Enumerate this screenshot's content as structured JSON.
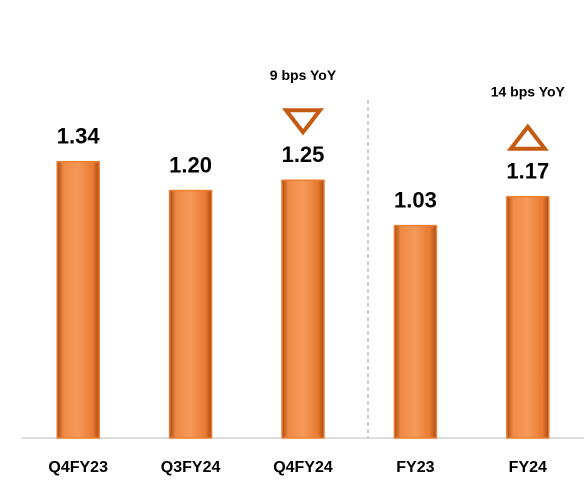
{
  "chart_data": {
    "type": "bar",
    "categories": [
      "Q4FY23",
      "Q3FY24",
      "Q4FY24",
      "FY23",
      "FY24"
    ],
    "values": [
      1.34,
      1.2,
      1.25,
      1.03,
      1.17
    ],
    "value_labels": [
      "1.34",
      "1.20",
      "1.25",
      "1.03",
      "1.17"
    ],
    "color": "#ed7d31",
    "ylim": [
      0,
      2.1
    ],
    "annotations": [
      {
        "text": "9 bps YoY",
        "category": "Q4FY24",
        "direction": "down"
      },
      {
        "text": "14 bps YoY",
        "category": "FY24",
        "direction": "up"
      }
    ]
  }
}
